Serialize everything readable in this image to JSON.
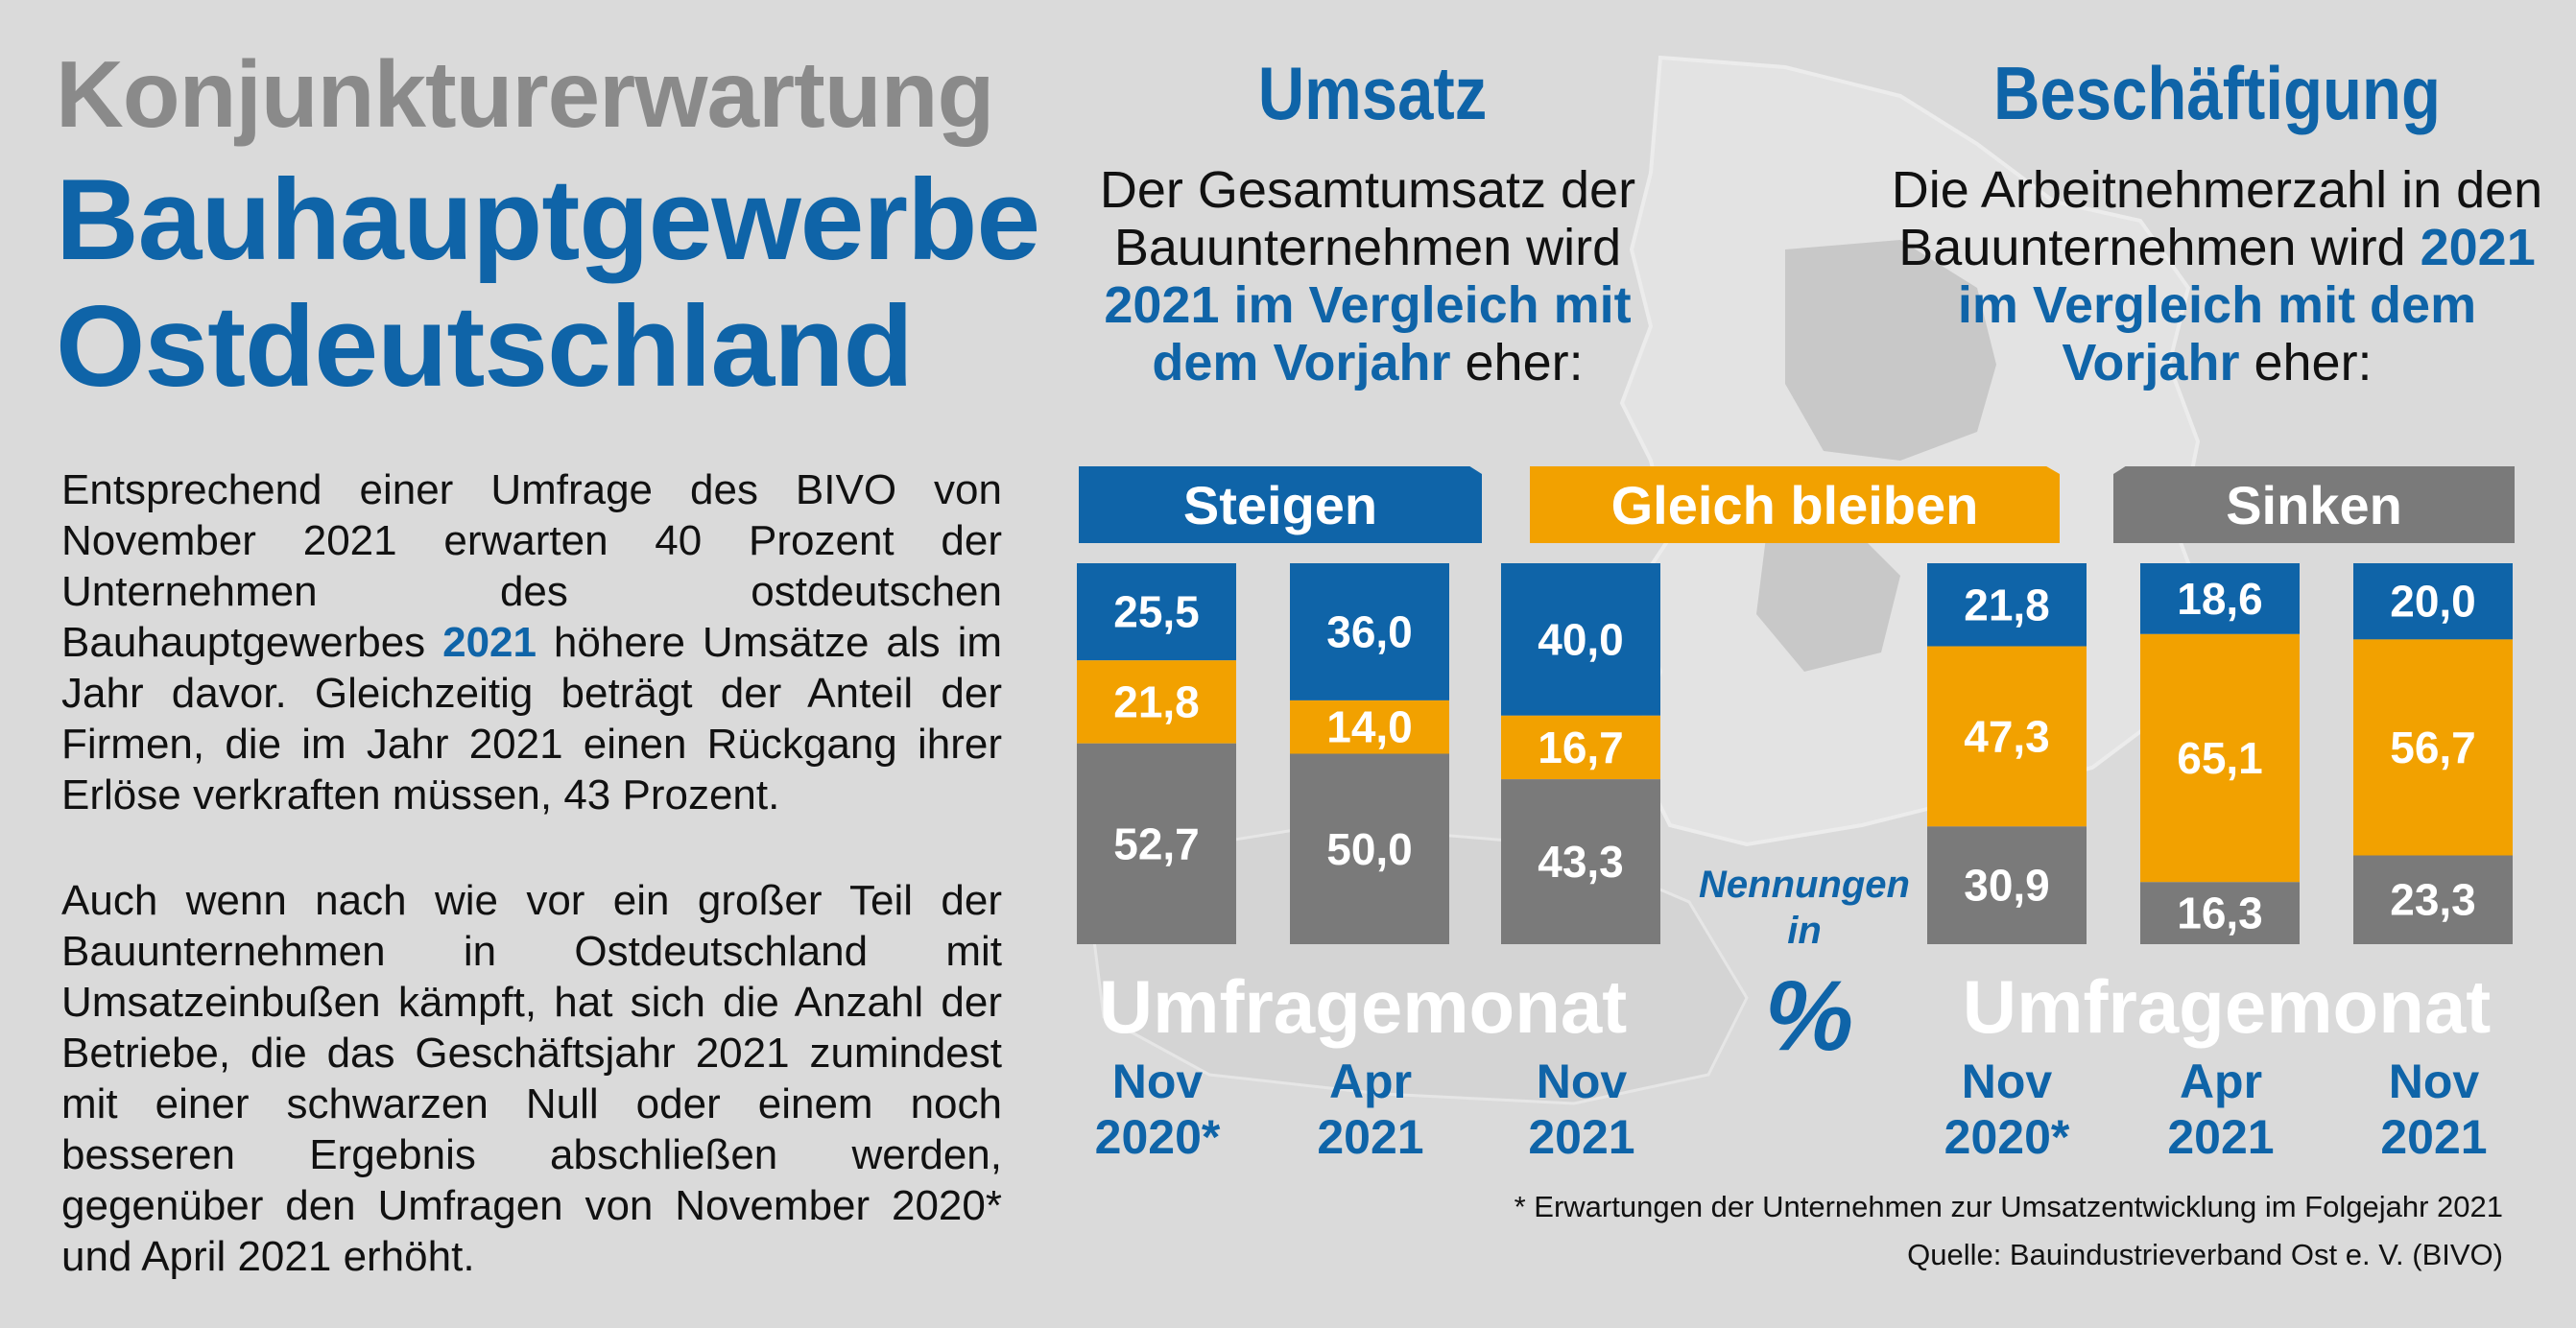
{
  "title": {
    "line1": "Konjunkturerwartung",
    "line2": "Bauhauptgewerbe",
    "line3": "Ostdeutschland"
  },
  "body": {
    "para1_a": "Entsprechend einer Umfrage des BIVO von November 2021 erwarten 40 Prozent der Unternehmen des ostdeutschen Bauhauptgewerbes ",
    "para1_hl": "2021",
    "para1_b": " höhere Umsätze als im Jahr davor. Gleichzeitig beträgt der Anteil der Firmen, die im Jahr 2021 einen Rückgang ihrer Erlöse verkraften müssen, 43 Prozent.",
    "para2": "Auch wenn nach wie vor ein großer Teil der Bauunternehmen in Ostdeutschland mit Umsatzeinbußen kämpft, hat sich die Anzahl der Betriebe, die das Geschäftsjahr 2021 zumindest mit einer schwarzen Null oder einem noch besseren Ergebnis abschließen werden, gegenüber den Umfragen von November 2020* und April 2021 erhöht."
  },
  "umsatz": {
    "title": "Umsatz",
    "intro_a": "Der Gesamtumsatz der Bauunternehmen wird ",
    "intro_hl": "2021 im Vergleich mit dem Vorjahr",
    "intro_b": " eher:"
  },
  "beschaeftigung": {
    "title": "Beschäftigung",
    "intro_a": "Die Arbeitnehmerzahl in den Bauunternehmen wird ",
    "intro_hl": "2021 im Vergleich mit dem Vorjahr",
    "intro_b": "  eher:"
  },
  "legend": {
    "steigen": "Steigen",
    "gleich": "Gleich bleiben",
    "sinken": "Sinken"
  },
  "axis": {
    "umfragemonat": "Umfragemonat",
    "nennungen": "Nennungen in",
    "percent": "%"
  },
  "months": [
    {
      "line1": "Nov",
      "line2": "2020*"
    },
    {
      "line1": "Apr",
      "line2": "2021"
    },
    {
      "line1": "Nov",
      "line2": "2021"
    }
  ],
  "footnote": "* Erwartungen der Unternehmen  zur Umsatzentwicklung im Folgejahr 2021",
  "source": "Quelle: Bauindustrieverband Ost e. V. (BIVO)",
  "colors": {
    "steigen": "#0f64a8",
    "gleich": "#f2a100",
    "sinken": "#7a7a7a",
    "background": "#dadada"
  },
  "chart_data": [
    {
      "type": "bar",
      "stacked": true,
      "title": "Umsatz",
      "categories": [
        "Nov 2020*",
        "Apr 2021",
        "Nov 2021"
      ],
      "ylabel": "Nennungen in %",
      "series": [
        {
          "name": "Steigen",
          "values": [
            25.5,
            36.0,
            40.0
          ],
          "labels": [
            "25,5",
            "36,0",
            "40,0"
          ]
        },
        {
          "name": "Gleich bleiben",
          "values": [
            21.8,
            14.0,
            16.7
          ],
          "labels": [
            "21,8",
            "14,0",
            "16,7"
          ]
        },
        {
          "name": "Sinken",
          "values": [
            52.7,
            50.0,
            43.3
          ],
          "labels": [
            "52,7",
            "50,0",
            "43,3"
          ]
        }
      ]
    },
    {
      "type": "bar",
      "stacked": true,
      "title": "Beschäftigung",
      "categories": [
        "Nov 2020*",
        "Apr 2021",
        "Nov 2021"
      ],
      "ylabel": "Nennungen in %",
      "series": [
        {
          "name": "Steigen",
          "values": [
            21.8,
            18.6,
            20.0
          ],
          "labels": [
            "21,8",
            "18,6",
            "20,0"
          ]
        },
        {
          "name": "Gleich bleiben",
          "values": [
            47.3,
            65.1,
            56.7
          ],
          "labels": [
            "47,3",
            "65,1",
            "56,7"
          ]
        },
        {
          "name": "Sinken",
          "values": [
            30.9,
            16.3,
            23.3
          ],
          "labels": [
            "30,9",
            "16,3",
            "23,3"
          ]
        }
      ]
    }
  ]
}
